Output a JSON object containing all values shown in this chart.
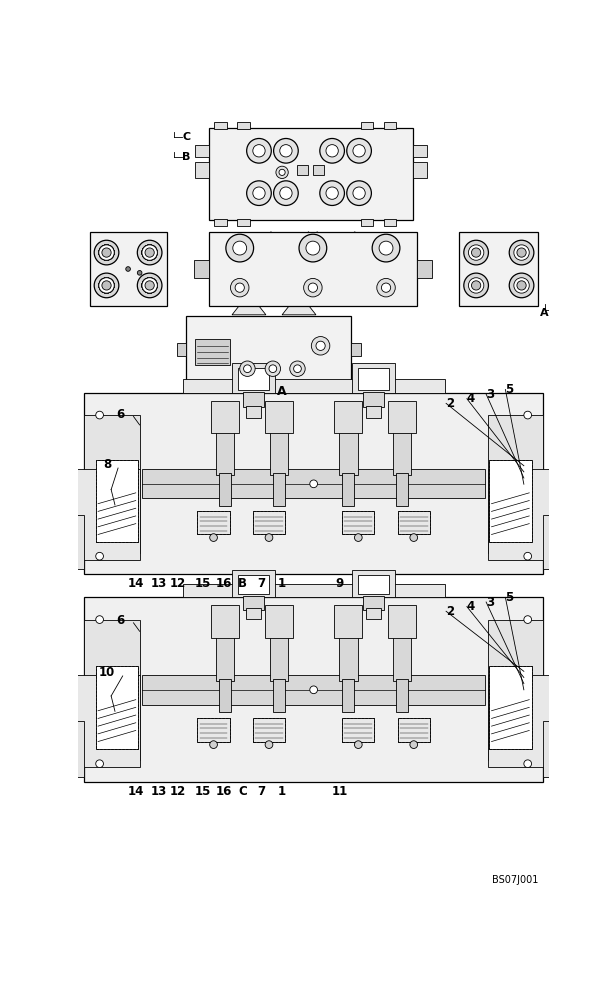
{
  "background_color": "#ffffff",
  "ref_code": "BS07J001",
  "line_color": "#000000",
  "gray_fill": "#c8c8c8",
  "light_gray": "#e8e8e8",
  "mid_gray": "#d0d0d0",
  "white": "#ffffff",
  "label_fontsize": 8.5,
  "ref_fontsize": 7,
  "section_B_bottom_labels": [
    [
      "14",
      75
    ],
    [
      "13",
      105
    ],
    [
      "12",
      130
    ],
    [
      "15",
      162
    ],
    [
      "16",
      189
    ],
    [
      "B",
      214
    ],
    [
      "7",
      238
    ],
    [
      "1",
      264
    ],
    [
      "9",
      340
    ]
  ],
  "section_C_bottom_labels": [
    [
      "14",
      75
    ],
    [
      "13",
      105
    ],
    [
      "12",
      130
    ],
    [
      "15",
      162
    ],
    [
      "16",
      189
    ],
    [
      "C",
      214
    ],
    [
      "7",
      238
    ],
    [
      "1",
      264
    ],
    [
      "11",
      340
    ]
  ]
}
